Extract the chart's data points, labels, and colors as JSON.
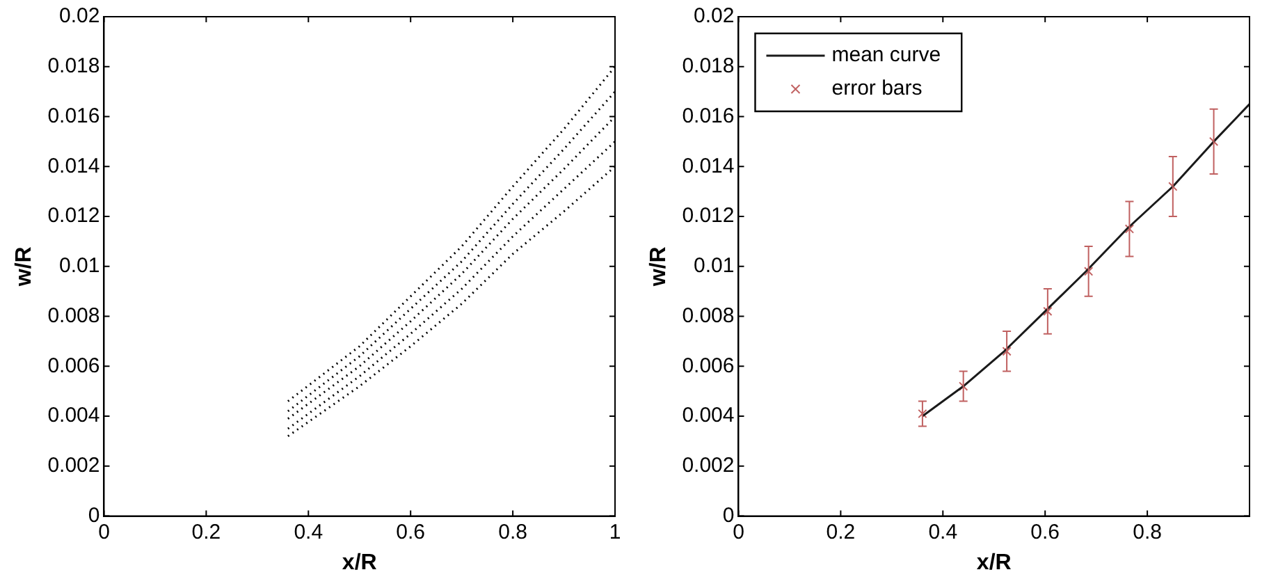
{
  "chart_data": [
    {
      "type": "line",
      "xlabel": "x/R",
      "ylabel": "w/R",
      "xlim": [
        0,
        1
      ],
      "ylim": [
        0,
        0.02
      ],
      "xticks": [
        0,
        0.2,
        0.4,
        0.6,
        0.8,
        1
      ],
      "yticks": [
        0,
        0.002,
        0.004,
        0.006,
        0.008,
        0.01,
        0.012,
        0.014,
        0.016,
        0.018,
        0.02
      ],
      "grid": false,
      "legend": false,
      "line_style": "dotted",
      "marker": "none",
      "x": [
        0.36,
        0.5,
        0.6,
        0.7,
        0.8,
        0.9,
        1
      ],
      "series": [
        {
          "color": "#000000",
          "values": [
            0.0032,
            0.0052,
            0.0068,
            0.0085,
            0.0105,
            0.0122,
            0.014
          ]
        },
        {
          "color": "#000000",
          "values": [
            0.0035,
            0.0056,
            0.0073,
            0.0091,
            0.0112,
            0.0131,
            0.015
          ]
        },
        {
          "color": "#000000",
          "values": [
            0.0039,
            0.006,
            0.0078,
            0.0097,
            0.0119,
            0.0139,
            0.016
          ]
        },
        {
          "color": "#000000",
          "values": [
            0.0042,
            0.0064,
            0.0083,
            0.0102,
            0.0125,
            0.0147,
            0.017
          ]
        },
        {
          "color": "#000000",
          "values": [
            0.0046,
            0.0068,
            0.0088,
            0.0108,
            0.0132,
            0.0155,
            0.018
          ]
        }
      ]
    },
    {
      "type": "line",
      "xlabel": "x/R",
      "ylabel": "w/R",
      "xlim": [
        0,
        1
      ],
      "ylim": [
        0,
        0.02
      ],
      "xticks": [
        0,
        0.2,
        0.4,
        0.6,
        0.8
      ],
      "yticks": [
        0,
        0.002,
        0.004,
        0.006,
        0.008,
        0.01,
        0.012,
        0.014,
        0.016,
        0.018,
        0.02
      ],
      "grid": false,
      "legend": "top left",
      "series": [
        {
          "name": "mean curve",
          "type": "line",
          "color": "#1a1a1a",
          "line_style": "solid",
          "marker": "none",
          "x": [
            0.36,
            0.44,
            0.52,
            0.6,
            0.68,
            0.76,
            0.85,
            0.93,
            1.0
          ],
          "values": [
            0.004,
            0.0052,
            0.0066,
            0.0082,
            0.0098,
            0.0115,
            0.0132,
            0.015,
            0.0165
          ]
        },
        {
          "name": "error bars",
          "type": "scatter",
          "color": "#c06060",
          "marker": "cross",
          "x": [
            0.36,
            0.44,
            0.525,
            0.605,
            0.685,
            0.765,
            0.85,
            0.93
          ],
          "values": [
            0.0041,
            0.0052,
            0.0066,
            0.0082,
            0.0098,
            0.0115,
            0.0132,
            0.015
          ],
          "errors": [
            0.0005,
            0.0006,
            0.0008,
            0.0009,
            0.001,
            0.0011,
            0.0012,
            0.0013
          ]
        }
      ]
    }
  ]
}
